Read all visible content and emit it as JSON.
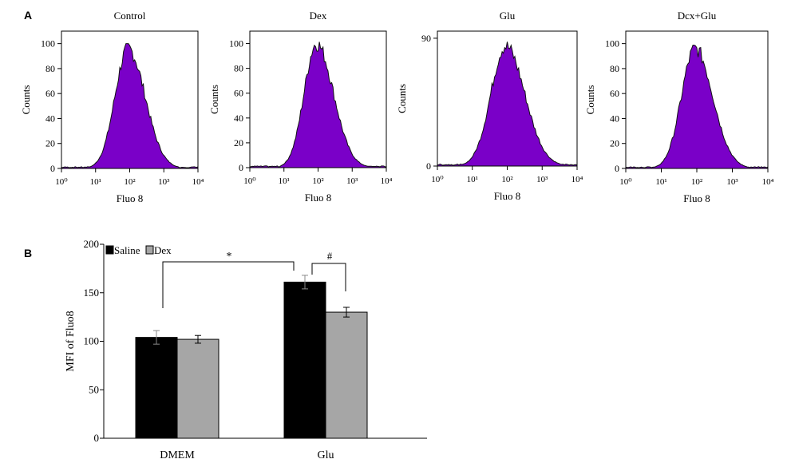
{
  "figure": {
    "panel_a_label": "A",
    "panel_b_label": "B"
  },
  "chart_data": [
    {
      "type": "area",
      "panel": "A",
      "title": "Control",
      "xlabel": "Fluo 8",
      "ylabel": "Counts",
      "x_scale": "log",
      "xlim": [
        1,
        10000
      ],
      "x_ticks": [
        "10⁰",
        "10¹",
        "10²",
        "10³",
        "10⁴"
      ],
      "ylim": [
        0,
        110
      ],
      "y_ticks": [
        0,
        20,
        40,
        60,
        80,
        100
      ],
      "peak_log": 1.95,
      "peak_count": 100,
      "spread_left": 0.38,
      "spread_right": 0.5,
      "fill_color": "#7a00c8"
    },
    {
      "type": "area",
      "panel": "A",
      "title": "Dex",
      "xlabel": "Fluo 8",
      "ylabel": "Counts",
      "x_scale": "log",
      "xlim": [
        1,
        10000
      ],
      "x_ticks": [
        "10⁰",
        "10¹",
        "10²",
        "10³",
        "10⁴"
      ],
      "ylim": [
        0,
        110
      ],
      "y_ticks": [
        0,
        20,
        40,
        60,
        80,
        100
      ],
      "peak_log": 1.95,
      "peak_count": 104,
      "spread_left": 0.36,
      "spread_right": 0.5,
      "fill_color": "#7a00c8"
    },
    {
      "type": "area",
      "panel": "A",
      "title": "Glu",
      "xlabel": "Fluo 8",
      "ylabel": "Counts",
      "x_scale": "log",
      "xlim": [
        1,
        10000
      ],
      "x_ticks": [
        "10⁰",
        "10¹",
        "10²",
        "10³",
        "10⁴"
      ],
      "ylim": [
        0,
        95
      ],
      "y_ticks": [
        0,
        90
      ],
      "peak_log": 1.95,
      "peak_count": 88,
      "spread_left": 0.42,
      "spread_right": 0.55,
      "fill_color": "#7a00c8"
    },
    {
      "type": "area",
      "panel": "A",
      "title": "Dcx+Glu",
      "xlabel": "Fluo 8",
      "ylabel": "Counts",
      "x_scale": "log",
      "xlim": [
        1,
        10000
      ],
      "x_ticks": [
        "10⁰",
        "10¹",
        "10²",
        "10³",
        "10⁴"
      ],
      "ylim": [
        0,
        110
      ],
      "y_ticks": [
        0,
        20,
        40,
        60,
        80,
        100
      ],
      "peak_log": 1.95,
      "peak_count": 100,
      "spread_left": 0.38,
      "spread_right": 0.5,
      "fill_color": "#7a00c8"
    },
    {
      "type": "bar",
      "panel": "B",
      "categories": [
        "DMEM",
        "Glu"
      ],
      "series": [
        {
          "name": "Saline",
          "values": [
            104,
            161
          ],
          "errors": [
            7,
            7
          ],
          "color": "#000000"
        },
        {
          "name": "Dex",
          "values": [
            102,
            130
          ],
          "errors": [
            4,
            5
          ],
          "color": "#a6a6a6"
        }
      ],
      "ylabel": "MFI of Fluo8",
      "xlabel": "",
      "ylim": [
        0,
        200
      ],
      "y_ticks": [
        0,
        50,
        100,
        150,
        200
      ],
      "legend": "top-left",
      "annotations": [
        {
          "text": "*",
          "from": "DMEM",
          "to": "Glu"
        },
        {
          "text": "#",
          "from": "Glu-Saline",
          "to": "Glu-Dex"
        }
      ]
    }
  ]
}
